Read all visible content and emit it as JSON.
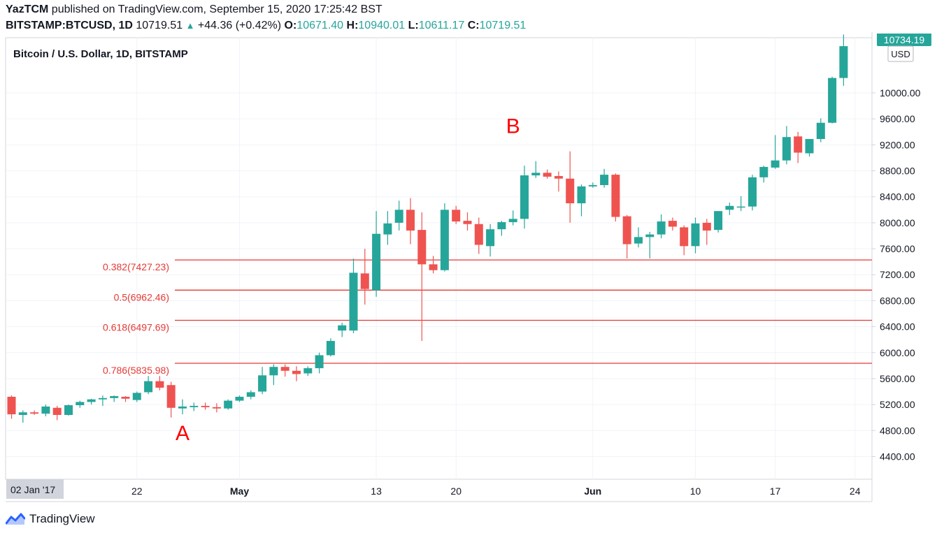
{
  "header": {
    "author": "YazTCM",
    "published_text": "published on TradingView.com, September 15, 2020 17:25:42 BST",
    "symbol": "BITSTAMP:BTCUSD, 1D",
    "last": "10719.51",
    "change": "+44.36 (+0.42%)",
    "open_label": "O:",
    "open": "10671.40",
    "high_label": "H:",
    "high": "10940.01",
    "low_label": "L:",
    "low": "10611.17",
    "close_label": "C:",
    "close": "10719.51"
  },
  "footer": {
    "brand": "TradingView"
  },
  "colors": {
    "up": "#26a69a",
    "down": "#ef5350",
    "fib": "#e53935",
    "annotation": "#ff0000",
    "grid": "#f0f3fa",
    "axis_text": "#131722"
  },
  "chart_data": {
    "type": "candlestick",
    "title": "Bitcoin / U.S. Dollar, 1D, BITSTAMP",
    "currency": "USD",
    "price_label_top": "10734.19",
    "ylim": [
      4050,
      10850
    ],
    "y_ticks": [
      "4400.00",
      "4800.00",
      "5200.00",
      "5600.00",
      "6000.00",
      "6400.00",
      "6800.00",
      "7200.00",
      "7600.00",
      "8000.00",
      "8400.00",
      "8800.00",
      "9200.00",
      "9600.00",
      "10000.00"
    ],
    "x_ticks": [
      {
        "label": "02 Jan '17",
        "index": 0,
        "highlight": true
      },
      {
        "label": "22",
        "index": 11
      },
      {
        "label": "May",
        "index": 20
      },
      {
        "label": "13",
        "index": 32
      },
      {
        "label": "20",
        "index": 39
      },
      {
        "label": "Jun",
        "index": 51
      },
      {
        "label": "10",
        "index": 60
      },
      {
        "label": "17",
        "index": 67
      },
      {
        "label": "24",
        "index": 74
      }
    ],
    "fib_levels": [
      {
        "label": "0.382(7427.23)",
        "value": 7427.23
      },
      {
        "label": "0.5(6962.46)",
        "value": 6962.46
      },
      {
        "label": "0.618(6497.69)",
        "value": 6497.69
      },
      {
        "label": "0.786(5835.98)",
        "value": 5835.98
      }
    ],
    "annotations": [
      {
        "text": "A",
        "index": 15,
        "value": 4650
      },
      {
        "text": "B",
        "index": 44,
        "value": 9380
      }
    ],
    "candles": [
      {
        "o": 5320,
        "h": 5340,
        "l": 4980,
        "c": 5050
      },
      {
        "o": 5040,
        "h": 5110,
        "l": 4920,
        "c": 5080
      },
      {
        "o": 5080,
        "h": 5110,
        "l": 5040,
        "c": 5060
      },
      {
        "o": 5060,
        "h": 5200,
        "l": 5020,
        "c": 5170
      },
      {
        "o": 5150,
        "h": 5180,
        "l": 4960,
        "c": 5040
      },
      {
        "o": 5040,
        "h": 5200,
        "l": 5030,
        "c": 5190
      },
      {
        "o": 5190,
        "h": 5260,
        "l": 5150,
        "c": 5240
      },
      {
        "o": 5240,
        "h": 5290,
        "l": 5200,
        "c": 5280
      },
      {
        "o": 5280,
        "h": 5340,
        "l": 5180,
        "c": 5300
      },
      {
        "o": 5300,
        "h": 5340,
        "l": 5240,
        "c": 5330
      },
      {
        "o": 5320,
        "h": 5330,
        "l": 5240,
        "c": 5290
      },
      {
        "o": 5270,
        "h": 5400,
        "l": 5240,
        "c": 5380
      },
      {
        "o": 5390,
        "h": 5640,
        "l": 5360,
        "c": 5560
      },
      {
        "o": 5560,
        "h": 5640,
        "l": 5420,
        "c": 5460
      },
      {
        "o": 5500,
        "h": 5550,
        "l": 5000,
        "c": 5150
      },
      {
        "o": 5140,
        "h": 5280,
        "l": 5050,
        "c": 5170
      },
      {
        "o": 5160,
        "h": 5230,
        "l": 5100,
        "c": 5180
      },
      {
        "o": 5180,
        "h": 5230,
        "l": 5120,
        "c": 5160
      },
      {
        "o": 5160,
        "h": 5220,
        "l": 5080,
        "c": 5140
      },
      {
        "o": 5140,
        "h": 5280,
        "l": 5120,
        "c": 5260
      },
      {
        "o": 5260,
        "h": 5340,
        "l": 5240,
        "c": 5320
      },
      {
        "o": 5320,
        "h": 5420,
        "l": 5280,
        "c": 5390
      },
      {
        "o": 5400,
        "h": 5780,
        "l": 5360,
        "c": 5650
      },
      {
        "o": 5650,
        "h": 5820,
        "l": 5500,
        "c": 5780
      },
      {
        "o": 5780,
        "h": 5820,
        "l": 5630,
        "c": 5720
      },
      {
        "o": 5720,
        "h": 5790,
        "l": 5560,
        "c": 5670
      },
      {
        "o": 5680,
        "h": 5790,
        "l": 5640,
        "c": 5760
      },
      {
        "o": 5760,
        "h": 6000,
        "l": 5680,
        "c": 5960
      },
      {
        "o": 5960,
        "h": 6220,
        "l": 5940,
        "c": 6180
      },
      {
        "o": 6340,
        "h": 6460,
        "l": 6240,
        "c": 6420
      },
      {
        "o": 6340,
        "h": 7450,
        "l": 6300,
        "c": 7230
      },
      {
        "o": 7220,
        "h": 7600,
        "l": 6740,
        "c": 6980
      },
      {
        "o": 6960,
        "h": 8180,
        "l": 6860,
        "c": 7830
      },
      {
        "o": 7820,
        "h": 8180,
        "l": 7660,
        "c": 7990
      },
      {
        "o": 8000,
        "h": 8340,
        "l": 7880,
        "c": 8200
      },
      {
        "o": 8200,
        "h": 8380,
        "l": 7670,
        "c": 7880
      },
      {
        "o": 7890,
        "h": 8160,
        "l": 6180,
        "c": 7360
      },
      {
        "o": 7360,
        "h": 7490,
        "l": 7220,
        "c": 7270
      },
      {
        "o": 7270,
        "h": 8300,
        "l": 7250,
        "c": 8200
      },
      {
        "o": 8200,
        "h": 8260,
        "l": 7980,
        "c": 8020
      },
      {
        "o": 8030,
        "h": 8160,
        "l": 7880,
        "c": 7980
      },
      {
        "o": 7980,
        "h": 8080,
        "l": 7520,
        "c": 7660
      },
      {
        "o": 7640,
        "h": 7980,
        "l": 7480,
        "c": 7900
      },
      {
        "o": 7900,
        "h": 8030,
        "l": 7800,
        "c": 8010
      },
      {
        "o": 8010,
        "h": 8190,
        "l": 7960,
        "c": 8060
      },
      {
        "o": 8060,
        "h": 8880,
        "l": 7910,
        "c": 8730
      },
      {
        "o": 8730,
        "h": 8950,
        "l": 8690,
        "c": 8770
      },
      {
        "o": 8770,
        "h": 8820,
        "l": 8680,
        "c": 8710
      },
      {
        "o": 8720,
        "h": 8790,
        "l": 8480,
        "c": 8680
      },
      {
        "o": 8680,
        "h": 9100,
        "l": 8000,
        "c": 8300
      },
      {
        "o": 8300,
        "h": 8590,
        "l": 8100,
        "c": 8560
      },
      {
        "o": 8560,
        "h": 8620,
        "l": 8540,
        "c": 8580
      },
      {
        "o": 8580,
        "h": 8830,
        "l": 8540,
        "c": 8740
      },
      {
        "o": 8740,
        "h": 8760,
        "l": 8020,
        "c": 8090
      },
      {
        "o": 8100,
        "h": 8120,
        "l": 7450,
        "c": 7670
      },
      {
        "o": 7680,
        "h": 7930,
        "l": 7620,
        "c": 7780
      },
      {
        "o": 7780,
        "h": 7860,
        "l": 7450,
        "c": 7820
      },
      {
        "o": 7820,
        "h": 8130,
        "l": 7760,
        "c": 8020
      },
      {
        "o": 8030,
        "h": 8080,
        "l": 7880,
        "c": 7940
      },
      {
        "o": 7930,
        "h": 7960,
        "l": 7500,
        "c": 7640
      },
      {
        "o": 7640,
        "h": 8080,
        "l": 7530,
        "c": 7990
      },
      {
        "o": 8000,
        "h": 8060,
        "l": 7660,
        "c": 7880
      },
      {
        "o": 7890,
        "h": 8180,
        "l": 7850,
        "c": 8180
      },
      {
        "o": 8200,
        "h": 8310,
        "l": 8120,
        "c": 8260
      },
      {
        "o": 8240,
        "h": 8410,
        "l": 8180,
        "c": 8250
      },
      {
        "o": 8250,
        "h": 8740,
        "l": 8190,
        "c": 8700
      },
      {
        "o": 8700,
        "h": 8880,
        "l": 8620,
        "c": 8860
      },
      {
        "o": 8850,
        "h": 9350,
        "l": 8830,
        "c": 8960
      },
      {
        "o": 8960,
        "h": 9490,
        "l": 8900,
        "c": 9320
      },
      {
        "o": 9330,
        "h": 9400,
        "l": 8920,
        "c": 9080
      },
      {
        "o": 9070,
        "h": 9280,
        "l": 9020,
        "c": 9290
      },
      {
        "o": 9290,
        "h": 9610,
        "l": 9240,
        "c": 9540
      },
      {
        "o": 9540,
        "h": 10250,
        "l": 9530,
        "c": 10230
      },
      {
        "o": 10230,
        "h": 10900,
        "l": 10110,
        "c": 10720
      }
    ]
  }
}
